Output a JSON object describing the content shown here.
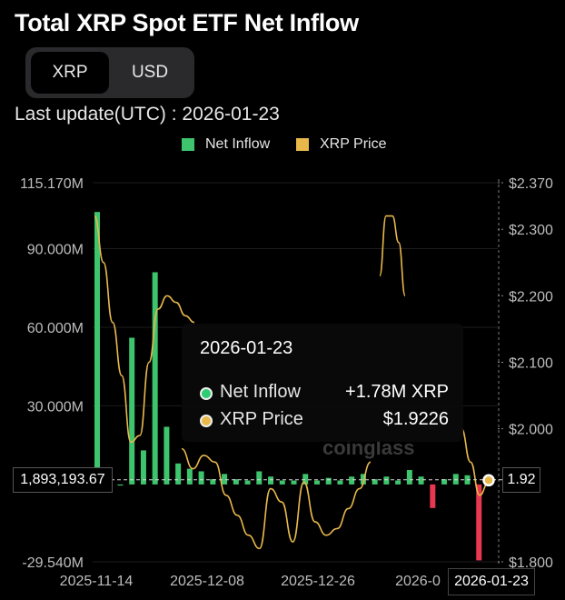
{
  "title": "Total XRP Spot ETF Net Inflow",
  "toggle": {
    "options": [
      "XRP",
      "USD"
    ],
    "active": "XRP"
  },
  "last_update": "Last update(UTC) : 2026-01-23",
  "watermark": "coinglass",
  "tooltip": {
    "date": "2026-01-23",
    "rows": [
      {
        "label": "Net Inflow",
        "value": "+1.78M XRP",
        "color": "#2ecc71"
      },
      {
        "label": "XRP Price",
        "value": "$1.9226",
        "color": "#e8b84b"
      }
    ]
  },
  "crosshair": {
    "left_label": "1,893,193.67",
    "right_label": "1.92",
    "date_label": "2026-01-23"
  },
  "chart_data": {
    "type": "bar",
    "legend": [
      {
        "name": "Net Inflow",
        "color": "#3ec46d"
      },
      {
        "name": "XRP Price",
        "color": "#e8b84b"
      }
    ],
    "left_axis": {
      "ticks": [
        "115.170M",
        "90.000M",
        "60.000M",
        "30.000M",
        "-29.540M"
      ],
      "tick_values": [
        115.17,
        90,
        60,
        30,
        -29.54
      ],
      "range": [
        -29.54,
        115.17
      ],
      "unit": "M XRP"
    },
    "right_axis": {
      "ticks": [
        "$2.370",
        "$2.300",
        "$2.200",
        "$2.100",
        "$2.000",
        "$1.800"
      ],
      "tick_values": [
        2.37,
        2.3,
        2.2,
        2.1,
        2.0,
        1.8
      ],
      "range": [
        1.8,
        2.37
      ]
    },
    "x_ticks": [
      "2025-11-14",
      "2025-12-08",
      "2025-12-26",
      "2026-0"
    ],
    "series": [
      {
        "name": "Net Inflow",
        "color": "#3ec46d",
        "negative_color": "#e8384f",
        "values": [
          104,
          6,
          0,
          56,
          13,
          81,
          22,
          8,
          6,
          5,
          2,
          4,
          2,
          1.5,
          5,
          3,
          1.5,
          1.5,
          4,
          1.5,
          2.5,
          1.5,
          3,
          4,
          2,
          3,
          1.5,
          5.5,
          3,
          -9,
          2,
          4,
          3.5,
          -29,
          1.78
        ]
      },
      {
        "name": "XRP Price",
        "color": "#e8b84b",
        "segments": [
          [
            2.32,
            2.25,
            2.16,
            2.08,
            1.98,
            1.99,
            2.1,
            2.18,
            2.2,
            2.19,
            2.17,
            2.16
          ],
          [
            2.23,
            2.32,
            2.32,
            2.28,
            2.2
          ],
          [
            1.97,
            1.94,
            1.96,
            1.95,
            1.9,
            1.87,
            1.84,
            1.82,
            1.91,
            1.89,
            1.83,
            1.92,
            1.86,
            1.84,
            1.85,
            1.88,
            1.91,
            1.95
          ],
          [
            2.0,
            1.95,
            1.9,
            1.92
          ]
        ]
      }
    ],
    "crosshair_value": 1.78,
    "grid": true,
    "legend_position": "top-center"
  }
}
